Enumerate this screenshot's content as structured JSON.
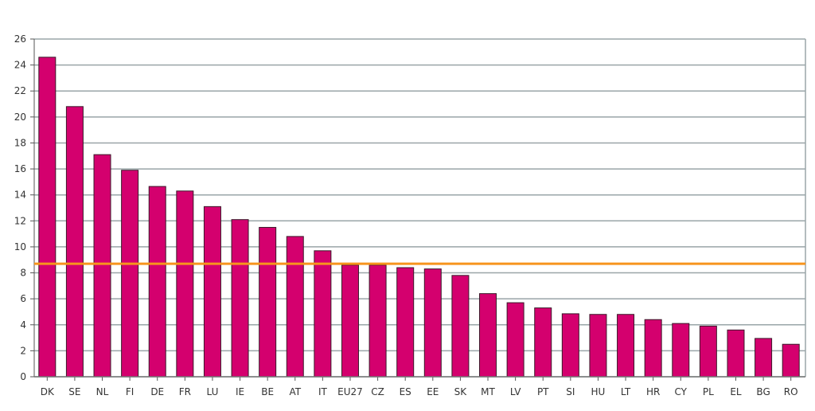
{
  "chart_data": {
    "type": "bar",
    "title": "",
    "xlabel": "",
    "ylabel": "",
    "ylim": [
      0,
      26
    ],
    "yticks": [
      0,
      2,
      4,
      6,
      8,
      10,
      12,
      14,
      16,
      18,
      20,
      22,
      24,
      26
    ],
    "grid": true,
    "categories": [
      "DK",
      "SE",
      "NL",
      "FI",
      "DE",
      "FR",
      "LU",
      "IE",
      "BE",
      "AT",
      "IT",
      "EU27",
      "CZ",
      "ES",
      "EE",
      "SK",
      "MT",
      "LV",
      "PT",
      "SI",
      "HU",
      "LT",
      "HR",
      "CY",
      "PL",
      "EL",
      "BG",
      "RO"
    ],
    "values": [
      24.6,
      20.8,
      17.1,
      15.9,
      14.65,
      14.3,
      13.1,
      12.1,
      11.5,
      10.8,
      9.7,
      8.6,
      8.6,
      8.4,
      8.3,
      7.8,
      6.4,
      5.7,
      5.3,
      4.85,
      4.8,
      4.8,
      4.4,
      4.1,
      3.9,
      3.6,
      2.95,
      2.5
    ],
    "reference_line": 8.7,
    "colors": {
      "bar": "#d4006e",
      "bar_edge": "#3a1a2a",
      "reference_line": "#f7941d",
      "grid": "#9aa5a8"
    }
  }
}
